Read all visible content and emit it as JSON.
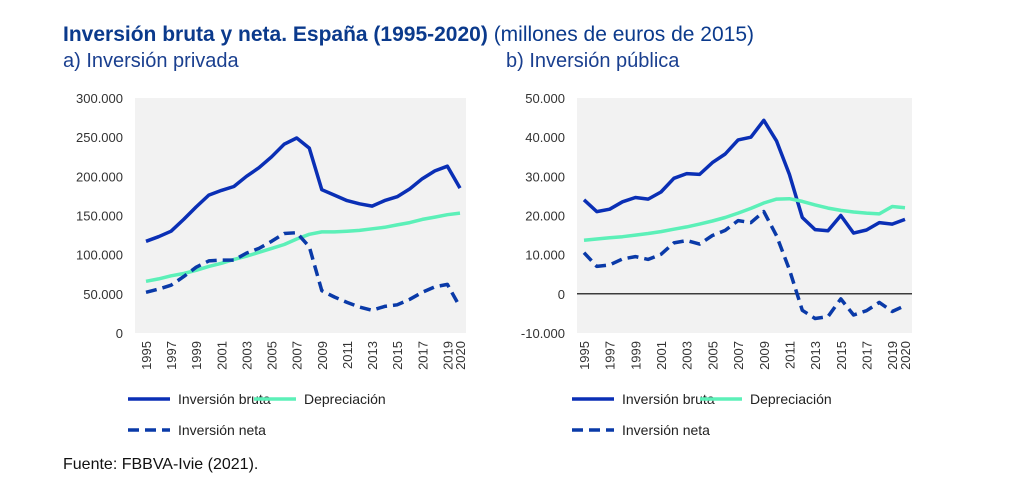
{
  "header": {
    "title": "Inversión bruta y neta. España (1995-2020)",
    "units": "(millones de euros de 2015)"
  },
  "source": "Fuente: FBBVA-Ivie (2021).",
  "colors": {
    "bruta": "#0a2fb5",
    "depreciacion": "#5cf0b8",
    "neta": "#0a3aa8",
    "background": "#f2f2f2"
  },
  "chart_data": [
    {
      "type": "line",
      "title": "a) Inversión privada",
      "x": [
        1995,
        1996,
        1997,
        1998,
        1999,
        2000,
        2001,
        2002,
        2003,
        2004,
        2005,
        2006,
        2007,
        2008,
        2009,
        2010,
        2011,
        2012,
        2013,
        2014,
        2015,
        2016,
        2017,
        2018,
        2019,
        2020
      ],
      "tick_labels": [
        "1995",
        "1997",
        "1999",
        "2001",
        "2003",
        "2005",
        "2007",
        "2009",
        "2011",
        "2013",
        "2015",
        "2017",
        "2019",
        "2020"
      ],
      "ylim": [
        0,
        300000
      ],
      "yticks": [
        0,
        50000,
        100000,
        150000,
        200000,
        250000,
        300000
      ],
      "ytick_labels": [
        "0",
        "50.000",
        "100.000",
        "150.000",
        "200.000",
        "250.000",
        "300.000"
      ],
      "zero_line": false,
      "series": [
        {
          "name": "Inversión bruta",
          "style": "solid",
          "values": [
            117000,
            123000,
            130000,
            145000,
            161000,
            176000,
            182000,
            187000,
            200000,
            211000,
            225000,
            241000,
            249000,
            236000,
            183000,
            176000,
            169000,
            165000,
            162000,
            169000,
            174000,
            184000,
            197000,
            207000,
            213000,
            185000
          ]
        },
        {
          "name": "Depreciación",
          "style": "solid",
          "values": [
            66000,
            69000,
            73000,
            76000,
            80000,
            85000,
            89000,
            94000,
            98000,
            103000,
            108000,
            113000,
            120000,
            126000,
            129000,
            129000,
            130000,
            131000,
            133000,
            135000,
            138000,
            141000,
            145000,
            148000,
            151000,
            153000
          ]
        },
        {
          "name": "Inversión neta",
          "style": "dashed",
          "values": [
            52000,
            56000,
            61000,
            72000,
            84000,
            92000,
            93000,
            93000,
            102000,
            108000,
            117000,
            127000,
            128000,
            110000,
            54000,
            46000,
            39000,
            33000,
            29000,
            34000,
            36000,
            43000,
            52000,
            59000,
            62000,
            33000
          ]
        }
      ],
      "legend": [
        {
          "label": "Inversión bruta",
          "style": "solid"
        },
        {
          "label": "Depreciación",
          "style": "solid"
        },
        {
          "label": "Inversión neta",
          "style": "dashed"
        }
      ]
    },
    {
      "type": "line",
      "title": "b) Inversión pública",
      "x": [
        1995,
        1996,
        1997,
        1998,
        1999,
        2000,
        2001,
        2002,
        2003,
        2004,
        2005,
        2006,
        2007,
        2008,
        2009,
        2010,
        2011,
        2012,
        2013,
        2014,
        2015,
        2016,
        2017,
        2018,
        2019,
        2020
      ],
      "tick_labels": [
        "1995",
        "1997",
        "1999",
        "2001",
        "2003",
        "2005",
        "2007",
        "2009",
        "2011",
        "2013",
        "2015",
        "2017",
        "2019",
        "2020"
      ],
      "ylim": [
        -10000,
        50000
      ],
      "yticks": [
        -10000,
        0,
        10000,
        20000,
        30000,
        40000,
        50000
      ],
      "ytick_labels": [
        "-10.000",
        "0",
        "10.000",
        "20.000",
        "30.000",
        "40.000",
        "50.000"
      ],
      "zero_line": true,
      "series": [
        {
          "name": "Inversión bruta",
          "style": "solid",
          "values": [
            24000,
            21000,
            21600,
            23500,
            24600,
            24200,
            26000,
            29500,
            30700,
            30500,
            33500,
            35700,
            39300,
            40000,
            44300,
            39000,
            30500,
            19500,
            16400,
            16100,
            20000,
            15500,
            16300,
            18200,
            17800,
            19000
          ]
        },
        {
          "name": "Depreciación",
          "style": "solid",
          "values": [
            13700,
            14000,
            14300,
            14600,
            15000,
            15400,
            15900,
            16500,
            17100,
            17800,
            18600,
            19500,
            20600,
            21800,
            23200,
            24200,
            24300,
            23600,
            22700,
            21900,
            21300,
            20900,
            20600,
            20400,
            22300,
            22000
          ]
        },
        {
          "name": "Inversión neta",
          "style": "dashed",
          "values": [
            10500,
            7000,
            7400,
            8900,
            9500,
            8800,
            10100,
            13000,
            13600,
            12700,
            14900,
            16200,
            18700,
            18200,
            21000,
            14800,
            6200,
            -4200,
            -6300,
            -5800,
            -1300,
            -5400,
            -4300,
            -2200,
            -4500,
            -3000
          ]
        }
      ],
      "legend": [
        {
          "label": "Inversión bruta",
          "style": "solid"
        },
        {
          "label": "Depreciación",
          "style": "solid"
        },
        {
          "label": "Inversión neta",
          "style": "dashed"
        }
      ]
    }
  ]
}
